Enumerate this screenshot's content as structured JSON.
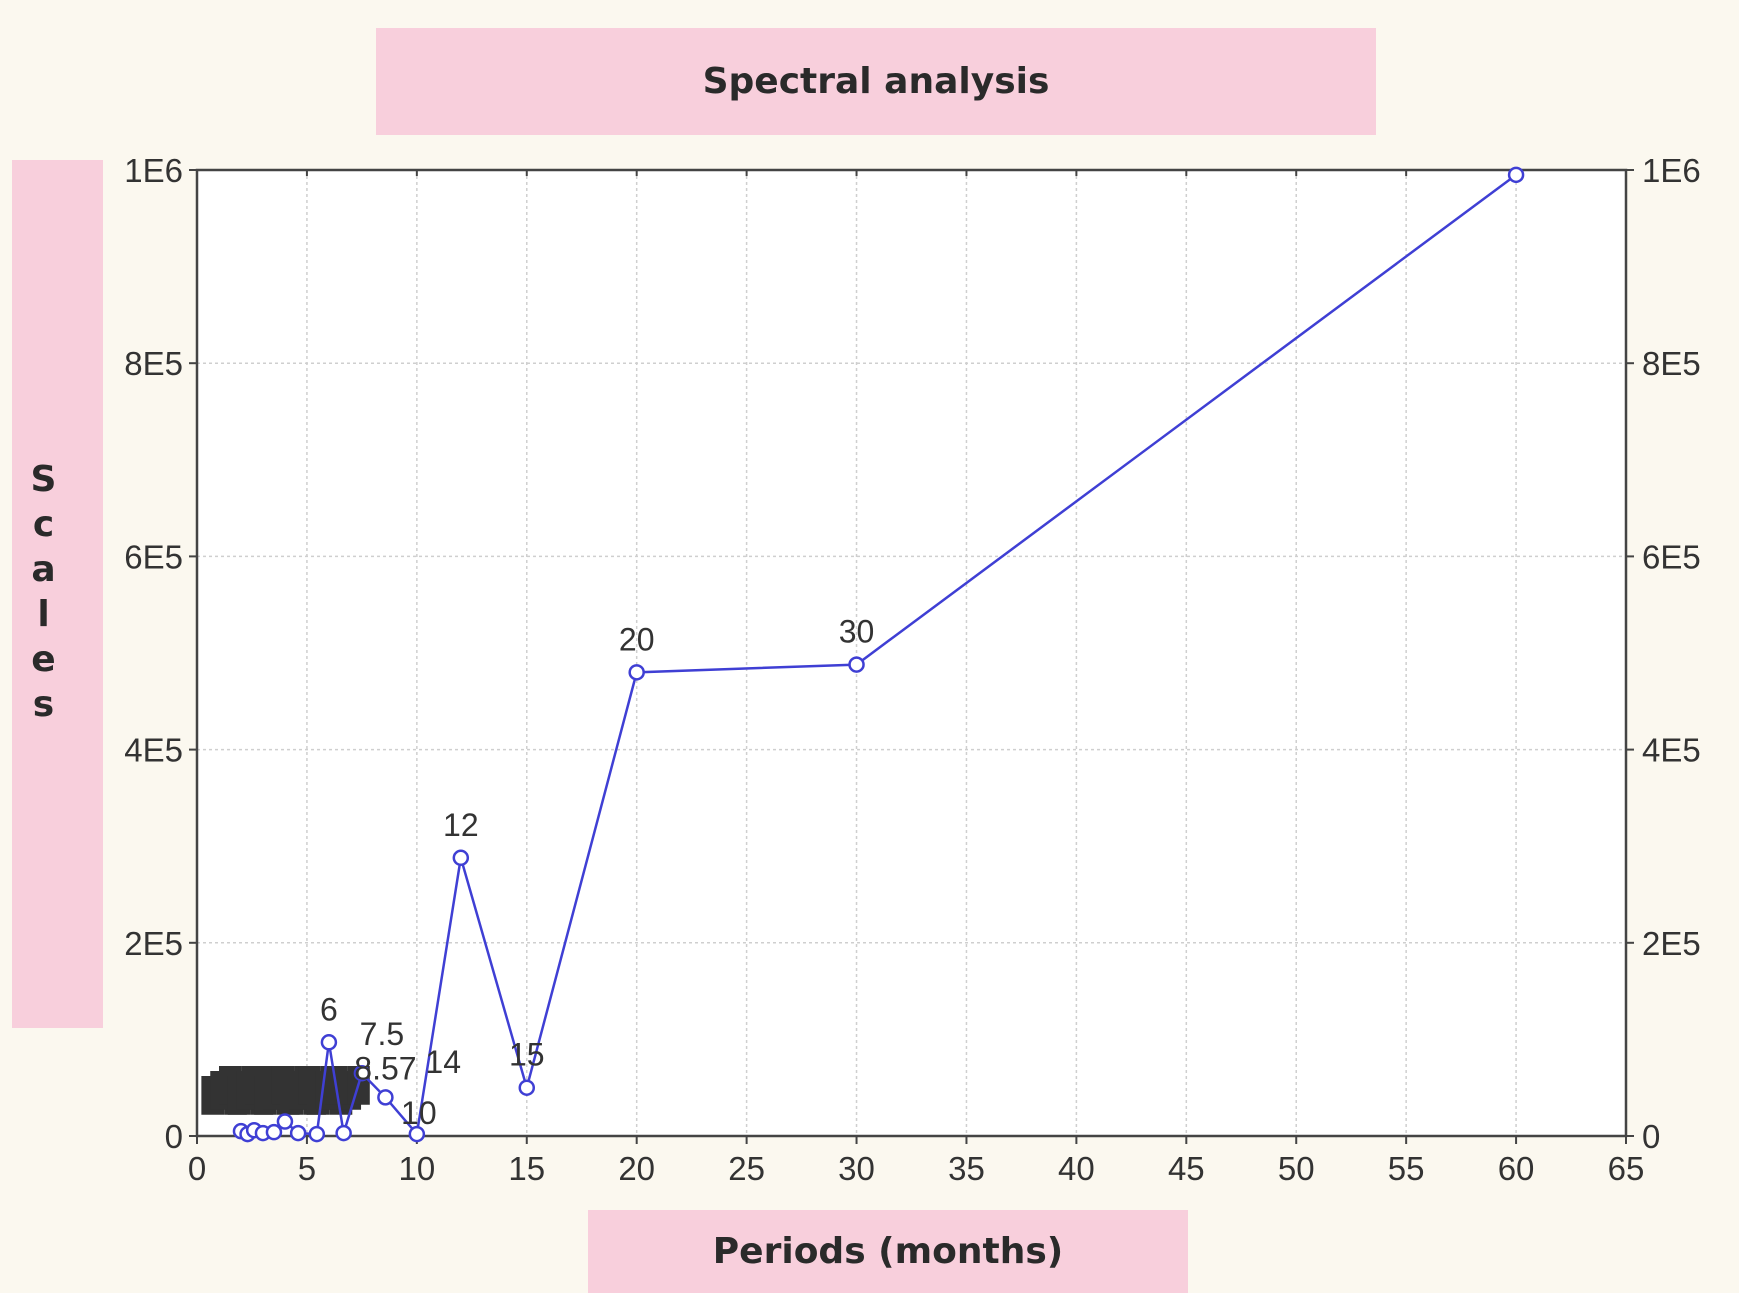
{
  "chart_data": {
    "type": "line",
    "title": "Spectral analysis",
    "xlabel": "Periods (months)",
    "ylabel": "Scales",
    "xlim": [
      0,
      65
    ],
    "ylim": [
      0,
      1000000
    ],
    "x_ticks": [
      0,
      5,
      10,
      15,
      20,
      25,
      30,
      35,
      40,
      45,
      50,
      55,
      60,
      65
    ],
    "y_tick_values": [
      0,
      200000,
      400000,
      600000,
      800000,
      1000000
    ],
    "y_tick_labels": [
      "0",
      "2E5",
      "4E5",
      "6E5",
      "8E5",
      "1E6"
    ],
    "grid": true,
    "series": [
      {
        "color": "#3f3fd4",
        "points": [
          {
            "x": 2.0,
            "y": 5000,
            "label": ""
          },
          {
            "x": 2.3,
            "y": 2000,
            "label": ""
          },
          {
            "x": 2.6,
            "y": 6000,
            "label": ""
          },
          {
            "x": 3.0,
            "y": 3000,
            "label": ""
          },
          {
            "x": 3.5,
            "y": 4000,
            "label": ""
          },
          {
            "x": 4.0,
            "y": 15000,
            "label": ""
          },
          {
            "x": 4.6,
            "y": 3000,
            "label": ""
          },
          {
            "x": 5.45,
            "y": 2000,
            "label": ""
          },
          {
            "x": 6.0,
            "y": 97000,
            "label": "6"
          },
          {
            "x": 6.67,
            "y": 3000,
            "label": ""
          },
          {
            "x": 7.5,
            "y": 65000,
            "label": "7.5"
          },
          {
            "x": 8.57,
            "y": 40000,
            "label": "8.57"
          },
          {
            "x": 10.0,
            "y": 2000,
            "label": "10"
          },
          {
            "x": 12.0,
            "y": 288000,
            "label": "12"
          },
          {
            "x": 15.0,
            "y": 50000,
            "label": "15"
          },
          {
            "x": 20.0,
            "y": 480000,
            "label": "20"
          },
          {
            "x": 30.0,
            "y": 488000,
            "label": "30"
          },
          {
            "x": 60.0,
            "y": 995000,
            "label": ""
          }
        ]
      }
    ],
    "annotations": [
      "14"
    ]
  }
}
